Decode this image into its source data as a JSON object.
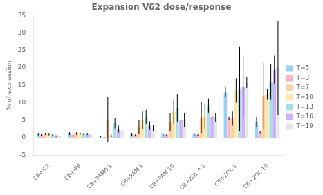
{
  "chart_data": {
    "type": "bar",
    "title": "Expansion Vδ2 dose/response",
    "ylabel": "% of expression",
    "categories": [
      "CB+IL2",
      "CB+IPP",
      "CB+PAM0.1",
      "CB+PAM 1",
      "CB+PAM 10",
      "CB+ZOL 0.1",
      "CB+ZOL 1",
      "CB+ZOL 10"
    ],
    "series": [
      {
        "name": "T=5",
        "values": [
          1.0,
          1.2,
          0.3,
          1.0,
          1.0,
          1.0,
          13.0,
          4.5
        ],
        "errors": [
          0.3,
          0.4,
          0.1,
          0.4,
          0.4,
          0.4,
          1.5,
          1.5
        ]
      },
      {
        "name": "T=3",
        "values": [
          0.8,
          0.9,
          0.2,
          0.8,
          0.8,
          0.8,
          5.5,
          1.5
        ],
        "errors": [
          0.2,
          0.2,
          0.1,
          0.2,
          0.2,
          0.2,
          0.5,
          0.4
        ]
      },
      {
        "name": "T=7",
        "values": [
          1.0,
          1.2,
          5.2,
          3.0,
          4.5,
          5.8,
          5.5,
          12.0
        ],
        "errors": [
          0.2,
          0.4,
          6.5,
          2.0,
          2.5,
          4.5,
          2.0,
          9.5
        ]
      },
      {
        "name": "T=10",
        "values": [
          1.0,
          1.2,
          0.5,
          5.0,
          7.5,
          6.0,
          13.5,
          12.5
        ],
        "errors": [
          0.3,
          0.3,
          0.3,
          2.5,
          3.5,
          3.5,
          3.5,
          1.5
        ]
      },
      {
        "name": "T=13",
        "values": [
          0.8,
          1.0,
          4.2,
          6.0,
          8.5,
          9.2,
          14.0,
          16.0
        ],
        "errors": [
          0.2,
          0.2,
          1.5,
          2.0,
          4.0,
          2.0,
          12.0,
          5.0
        ]
      },
      {
        "name": "T=16",
        "values": [
          0.5,
          1.0,
          2.5,
          3.5,
          5.0,
          6.0,
          14.5,
          19.5
        ],
        "errors": [
          0.2,
          0.2,
          1.0,
          1.2,
          2.5,
          1.2,
          8.5,
          4.0
        ]
      },
      {
        "name": "T=19",
        "values": [
          0.5,
          0.8,
          2.0,
          2.8,
          5.0,
          5.8,
          15.8,
          20.0
        ],
        "errors": [
          0.1,
          0.2,
          0.8,
          0.8,
          2.0,
          1.2,
          1.5,
          13.5
        ]
      }
    ],
    "ylim": [
      -5,
      35
    ],
    "yticks": [
      -5,
      0,
      5,
      10,
      15,
      20,
      25,
      30,
      35
    ],
    "grid": false,
    "legend": "right"
  }
}
